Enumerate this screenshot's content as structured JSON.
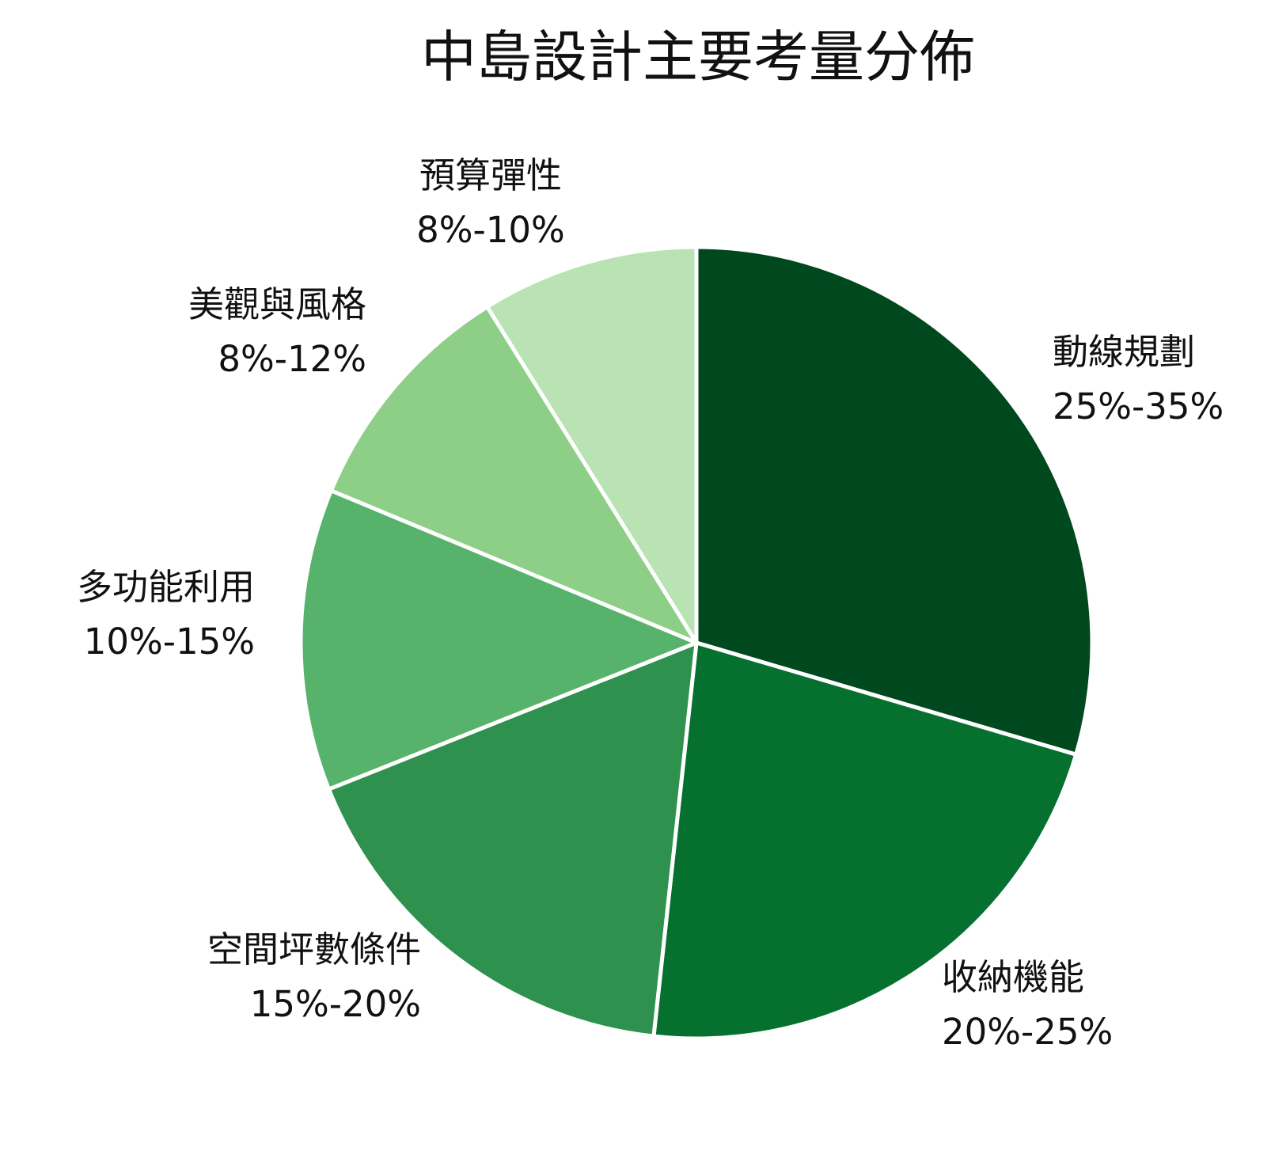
{
  "chart_data": {
    "type": "pie",
    "title": "中島設計主要考量分佈",
    "slices": [
      {
        "label": "動線規劃",
        "range_text": "25%-35%",
        "value": 30,
        "color": "#00481d"
      },
      {
        "label": "收納機能",
        "range_text": "20%-25%",
        "value": 22.5,
        "color": "#06712f"
      },
      {
        "label": "空間坪數條件",
        "range_text": "15%-20%",
        "value": 17.5,
        "color": "#2e914d"
      },
      {
        "label": "多功能利用",
        "range_text": "10%-15%",
        "value": 12.5,
        "color": "#57b36b"
      },
      {
        "label": "美觀與風格",
        "range_text": "8%-12%",
        "value": 10,
        "color": "#8ecf88"
      },
      {
        "label": "預算彈性",
        "range_text": "8%-10%",
        "value": 9,
        "color": "#b9e3b3"
      }
    ],
    "start_angle": "top",
    "direction": "clockwise",
    "slice_border_color": "#ffffff"
  }
}
